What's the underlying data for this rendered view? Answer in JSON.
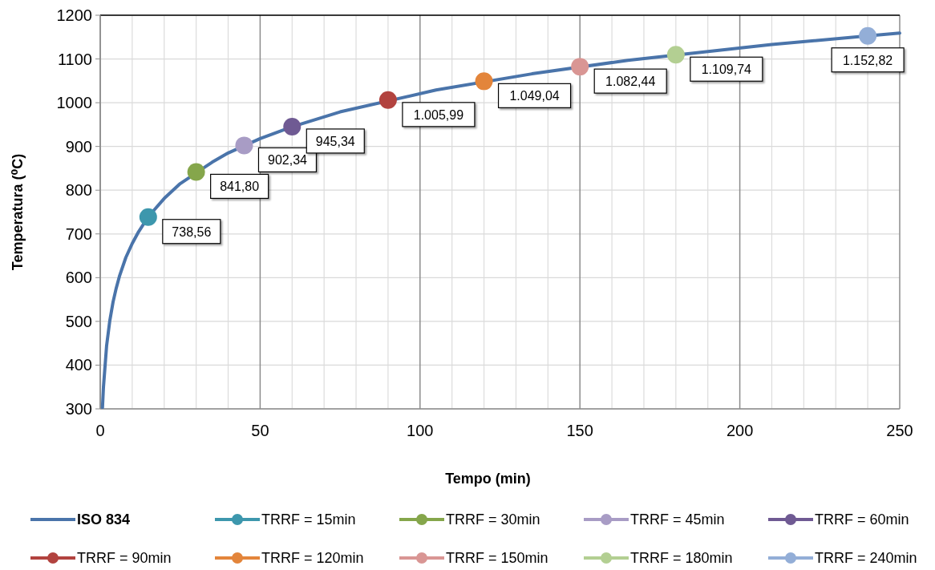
{
  "chart_data": {
    "type": "line",
    "xlabel": "Tempo (min)",
    "ylabel": "Temperatura (⁰C)",
    "xlim": [
      0,
      250
    ],
    "ylim": [
      300,
      1200
    ],
    "xticks": [
      0,
      {
        "value": 10,
        "label": null
      },
      {
        "value": 20,
        "label": null
      },
      {
        "value": 30,
        "label": null
      },
      {
        "value": 40,
        "label": null
      },
      50,
      {
        "value": 60,
        "label": null
      },
      {
        "value": 70,
        "label": null
      },
      {
        "value": 80,
        "label": null
      },
      {
        "value": 90,
        "label": null
      },
      100,
      {
        "value": 110,
        "label": null
      },
      {
        "value": 120,
        "label": null
      },
      {
        "value": 130,
        "label": null
      },
      {
        "value": 140,
        "label": null
      },
      150,
      {
        "value": 160,
        "label": null
      },
      {
        "value": 170,
        "label": null
      },
      {
        "value": 180,
        "label": null
      },
      {
        "value": 190,
        "label": null
      },
      200,
      {
        "value": 210,
        "label": null
      },
      {
        "value": 220,
        "label": null
      },
      {
        "value": 230,
        "label": null
      },
      {
        "value": 240,
        "label": null
      },
      250
    ],
    "yticks": [
      300,
      400,
      500,
      600,
      700,
      800,
      900,
      1000,
      1100,
      1200
    ],
    "grid": true,
    "legend": "bottom",
    "series": [
      {
        "name": "ISO 834",
        "color": "#4a74aa",
        "marker": "none",
        "x": [
          0.7,
          1,
          2,
          3,
          4,
          5,
          6,
          8,
          10,
          12,
          15,
          20,
          25,
          35,
          40,
          50,
          60,
          75,
          105,
          135,
          165,
          210,
          240,
          250
        ],
        "values": [
          303,
          349,
          445,
          502,
          544,
          576,
          603,
          646,
          678,
          705,
          739,
          781,
          815,
          864,
          885,
          918,
          945,
          979,
          1029,
          1066,
          1097,
          1133,
          1153,
          1159
        ]
      },
      {
        "name": "TRRF = 15min",
        "type": "scatter",
        "color": "#3d97ad",
        "marker": "circle",
        "x": [
          15
        ],
        "values": [
          738.56
        ],
        "value_labels": [
          "738,56"
        ]
      },
      {
        "name": "TRRF = 30min",
        "type": "scatter",
        "color": "#85a64b",
        "marker": "circle",
        "x": [
          30
        ],
        "values": [
          841.8
        ],
        "value_labels": [
          "841,80"
        ]
      },
      {
        "name": "TRRF = 45min",
        "type": "scatter",
        "color": "#a89cc5",
        "marker": "circle",
        "x": [
          45
        ],
        "values": [
          902.34
        ],
        "value_labels": [
          "902,34"
        ]
      },
      {
        "name": "TRRF = 60min",
        "type": "scatter",
        "color": "#6f5a93",
        "marker": "circle",
        "x": [
          60
        ],
        "values": [
          945.34
        ],
        "value_labels": [
          "945,34"
        ]
      },
      {
        "name": "TRRF = 90min",
        "type": "scatter",
        "color": "#b2433f",
        "marker": "circle",
        "x": [
          90
        ],
        "values": [
          1005.99
        ],
        "value_labels": [
          "1.005,99"
        ]
      },
      {
        "name": "TRRF = 120min",
        "type": "scatter",
        "color": "#e3853b",
        "marker": "circle",
        "x": [
          120
        ],
        "values": [
          1049.04
        ],
        "value_labels": [
          "1.049,04"
        ]
      },
      {
        "name": "TRRF = 150min",
        "type": "scatter",
        "color": "#d99694",
        "marker": "circle",
        "x": [
          150
        ],
        "values": [
          1082.44
        ],
        "value_labels": [
          "1.082,44"
        ]
      },
      {
        "name": "TRRF = 180min",
        "type": "scatter",
        "color": "#b3cf92",
        "marker": "circle",
        "x": [
          180
        ],
        "values": [
          1109.74
        ],
        "value_labels": [
          "1.109,74"
        ]
      },
      {
        "name": "TRRF = 240min",
        "type": "scatter",
        "color": "#93aed7",
        "marker": "circle",
        "x": [
          240
        ],
        "values": [
          1152.82
        ],
        "value_labels": [
          "1.152,82"
        ]
      }
    ]
  }
}
